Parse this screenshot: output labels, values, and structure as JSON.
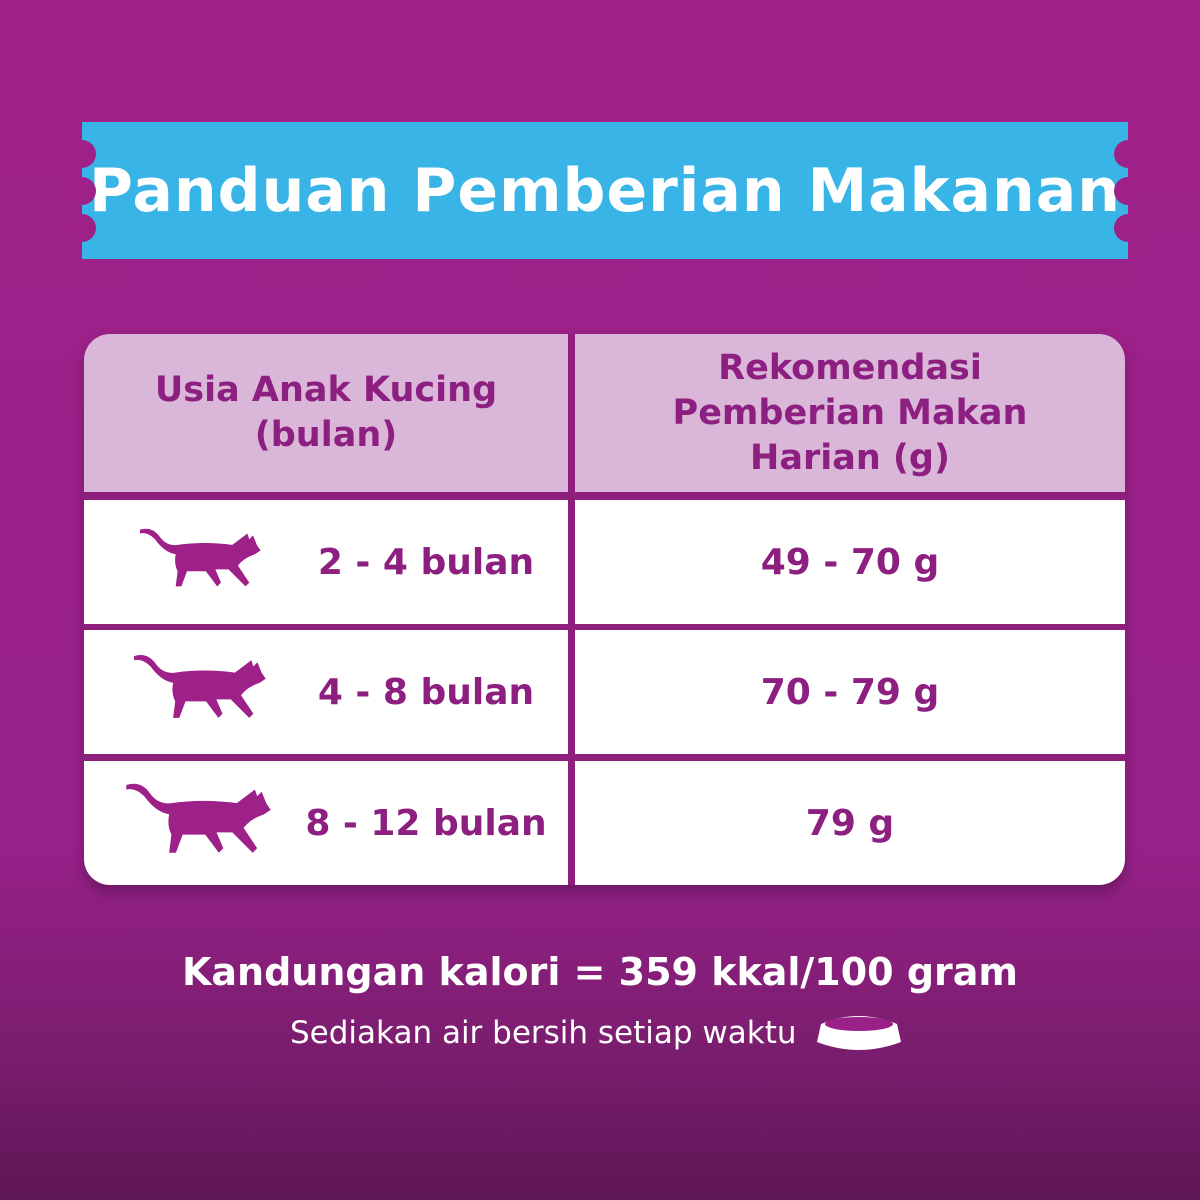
{
  "title": "Panduan Pemberian Makanan",
  "table": {
    "headers": [
      "Usia Anak Kucing (bulan)",
      "Rekomendasi Pemberian Makan Harian  (g)"
    ],
    "rows": [
      {
        "age": "2 - 4 bulan",
        "amount": "49 - 70 g",
        "icon": "cat-icon"
      },
      {
        "age": "4 - 8 bulan",
        "amount": "70 - 79 g",
        "icon": "cat-icon"
      },
      {
        "age": "8 - 12 bulan",
        "amount": "79 g",
        "icon": "cat-icon"
      }
    ]
  },
  "footer": {
    "calories": "Kandungan kalori = 359 kkal/100 gram",
    "note": "Sediakan air bersih setiap waktu",
    "icon": "bowl-icon"
  },
  "colors": {
    "background": "#9e2189",
    "banner": "#38b4e6",
    "header": "#dab6d8",
    "text": "#8c1f80"
  }
}
